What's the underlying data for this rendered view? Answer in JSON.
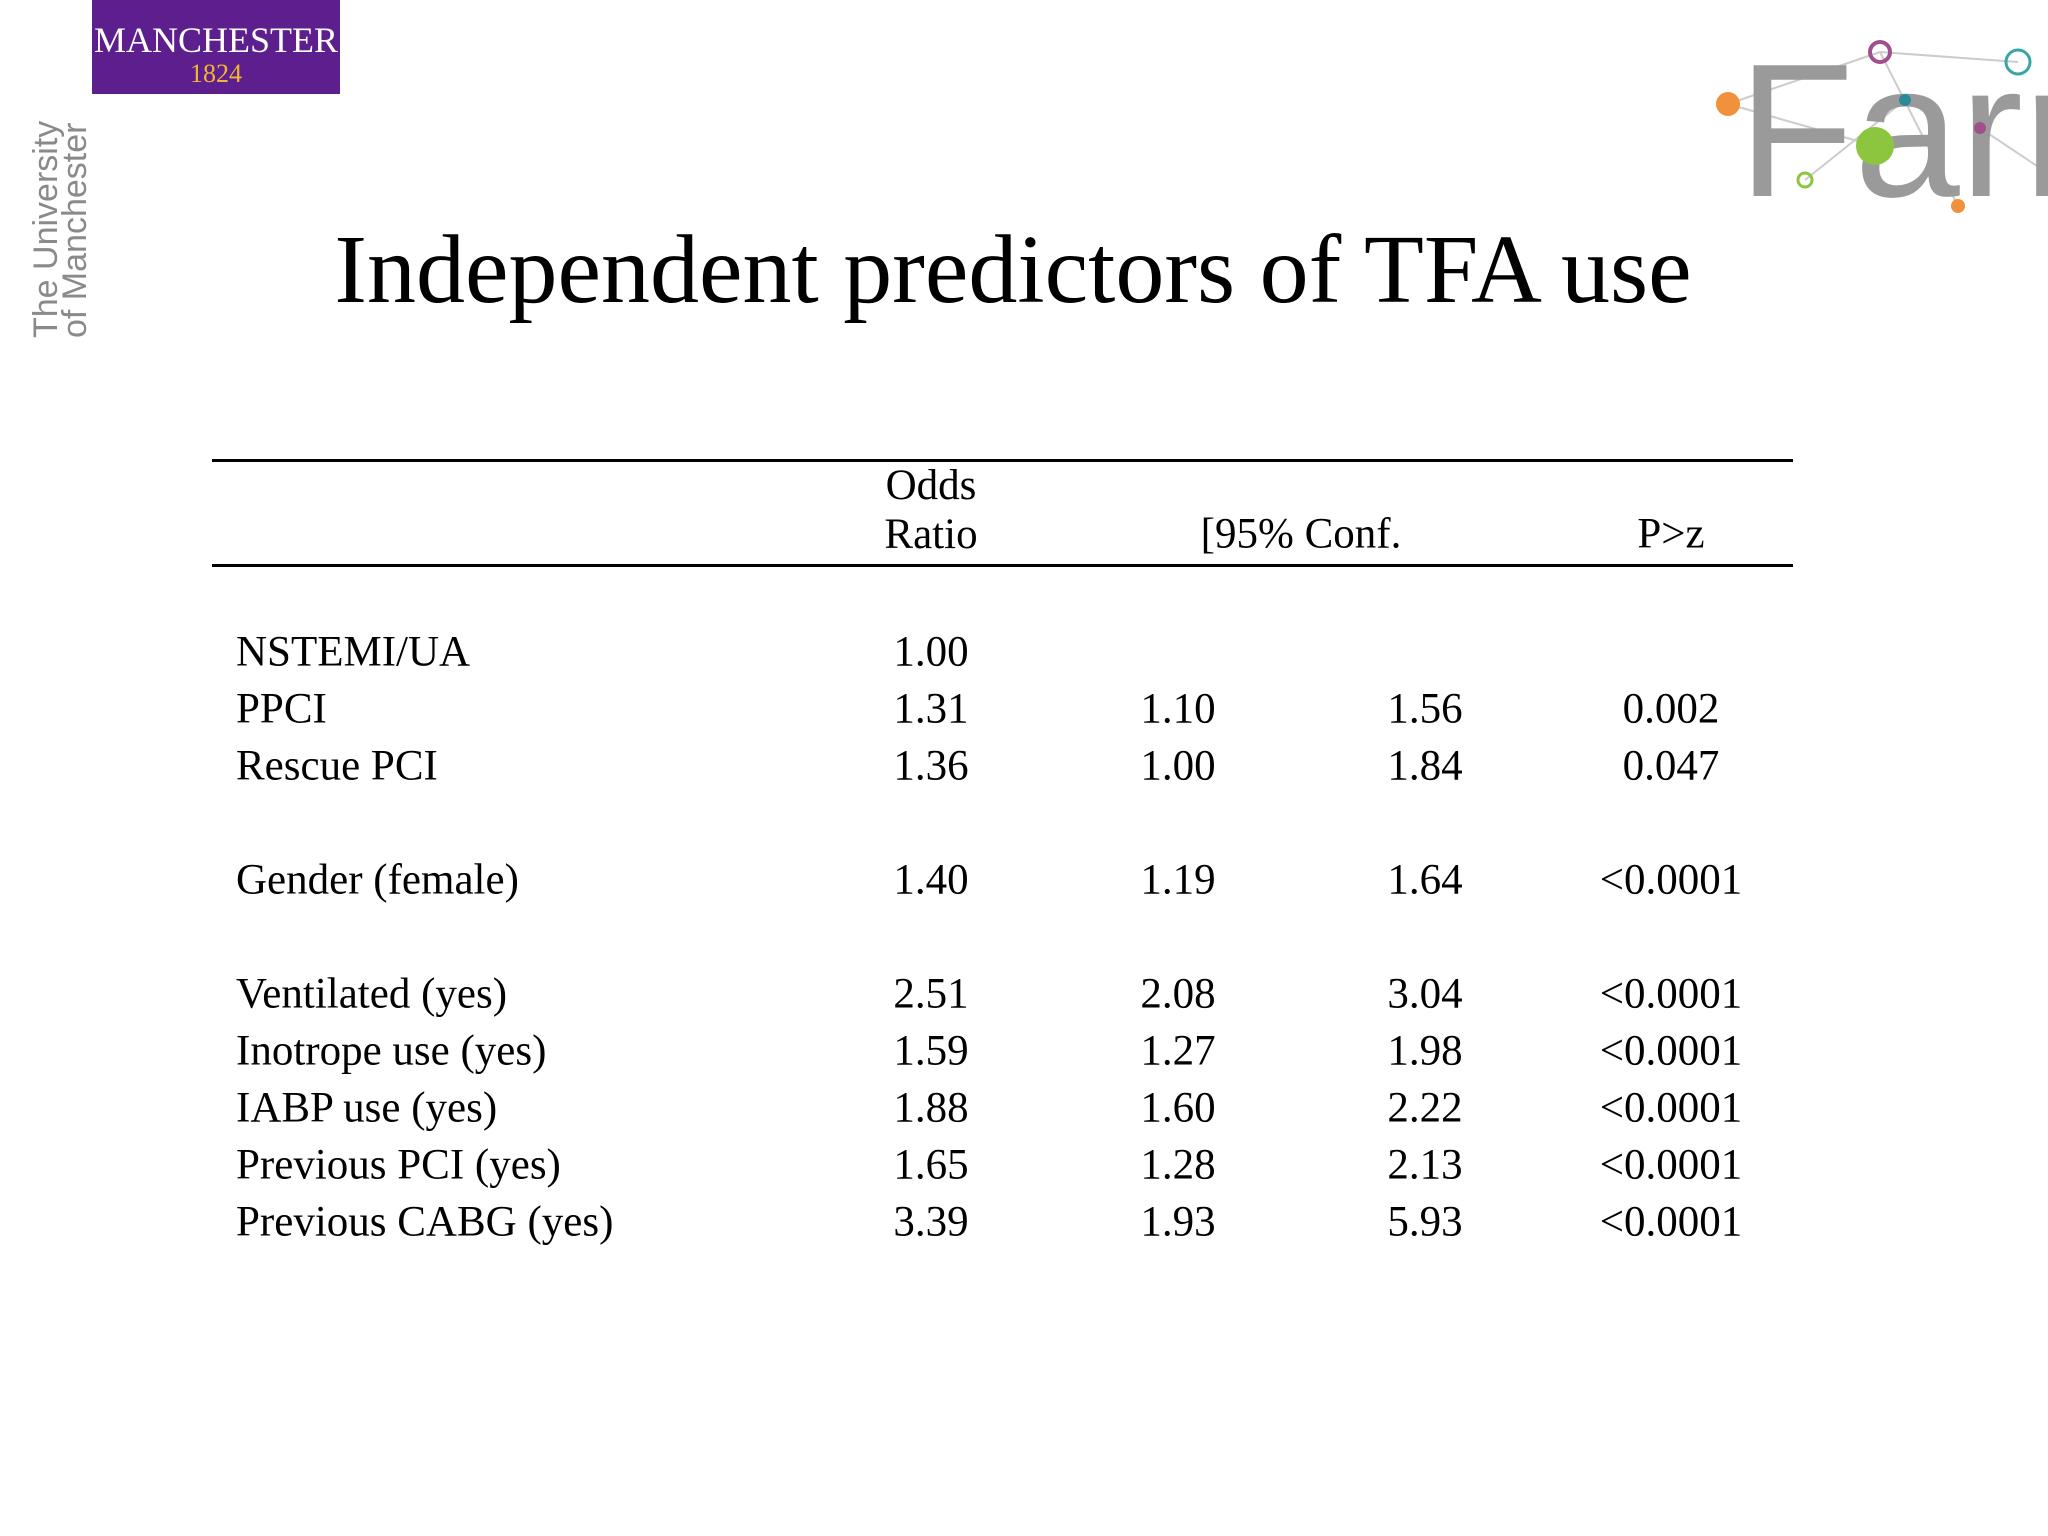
{
  "logos": {
    "manchester": {
      "name": "MANCHESTER",
      "year": "1824",
      "university": [
        "The University",
        "of Manchester"
      ]
    },
    "farr": "Farr"
  },
  "title": "Independent predictors of TFA use",
  "table": {
    "header": [
      "Odds Ratio",
      "[95% Conf.",
      "P>z"
    ],
    "groups": [
      [
        [
          "NSTEMI/UA",
          "1.00"
        ],
        [
          "PPCI",
          "1.31",
          "1.10",
          "1.56",
          "0.002"
        ],
        [
          "Rescue PCI",
          "1.36",
          "1.00",
          "1.84",
          "0.047"
        ]
      ],
      [
        [
          "Gender (female)",
          "1.40",
          "1.19",
          "1.64",
          "<0.0001"
        ]
      ],
      [
        [
          "Ventilated (yes)",
          "2.51",
          "2.08",
          "3.04",
          "<0.0001"
        ],
        [
          "Inotrope use (yes)",
          "1.59",
          "1.27",
          "1.98",
          "<0.0001"
        ],
        [
          "IABP use (yes)",
          "1.88",
          "1.60",
          "2.22",
          "<0.0001"
        ],
        [
          "Previous PCI (yes)",
          "1.65",
          "1.28",
          "2.13",
          "<0.0001"
        ],
        [
          "Previous CABG (yes)",
          "3.39",
          "1.93",
          "5.93",
          "<0.0001"
        ]
      ]
    ]
  }
}
